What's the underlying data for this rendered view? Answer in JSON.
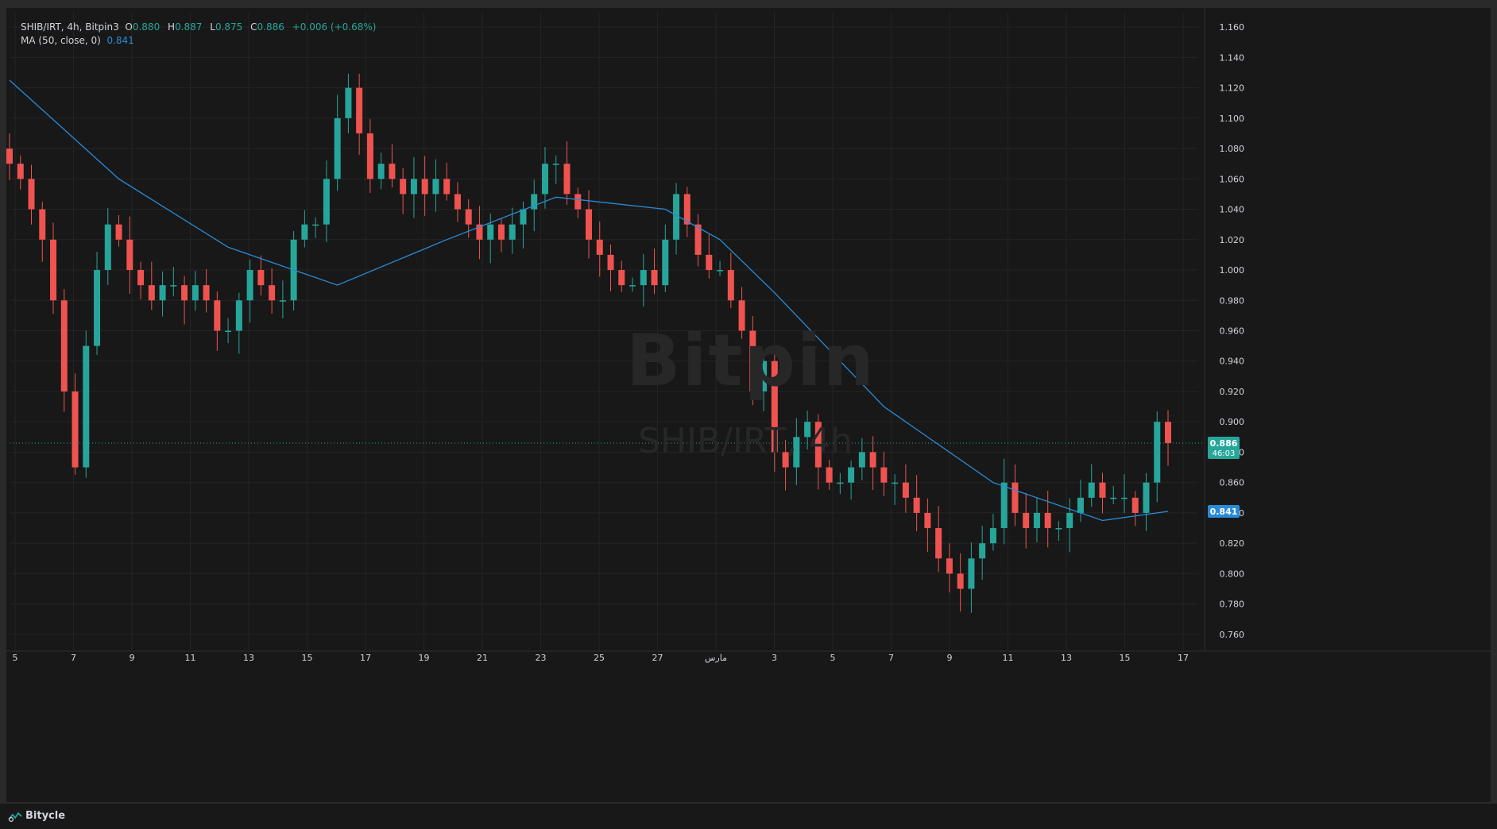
{
  "legend": {
    "symbol": "SHIB/IRT, 4h, Bitpin3",
    "o_label": "O",
    "o_value": "0.880",
    "h_label": "H",
    "h_value": "0.887",
    "l_label": "L",
    "l_value": "0.875",
    "c_label": "C",
    "c_value": "0.886",
    "change": "+0.006 (+0.68%)",
    "ma_label": "MA (50, close, 0)",
    "ma_value": "0.841"
  },
  "watermark": {
    "brand": "Bitpin",
    "symbol": "SHIB/IRT, 4h"
  },
  "price_badge": {
    "price": "0.886",
    "countdown": "46:03"
  },
  "ma_badge": {
    "value": "0.841"
  },
  "footer": {
    "brand": "Bitycle"
  },
  "colors": {
    "up": "#26a69a",
    "down": "#ef5350",
    "ma": "#2a8bd8",
    "grid": "#242424",
    "axis_text": "#d1d4dc",
    "price_line": "#26a69a"
  },
  "chart_data": {
    "type": "candlestick",
    "title": "SHIB/IRT, 4h",
    "ylim": [
      0.75,
      1.17
    ],
    "y_ticks": [
      "1.160",
      "1.140",
      "1.120",
      "1.100",
      "1.080",
      "1.060",
      "1.040",
      "1.020",
      "1.000",
      "0.980",
      "0.960",
      "0.940",
      "0.920",
      "0.900",
      "0.880",
      "0.860",
      "0.840",
      "0.820",
      "0.800",
      "0.780",
      "0.760"
    ],
    "x_ticks": [
      "5",
      "7",
      "9",
      "11",
      "13",
      "15",
      "17",
      "19",
      "21",
      "23",
      "25",
      "27",
      "مارس",
      "3",
      "5",
      "7",
      "9",
      "11",
      "13",
      "15",
      "17"
    ],
    "close_series": [
      1.07,
      1.06,
      1.04,
      1.02,
      0.98,
      0.92,
      0.87,
      0.95,
      1.0,
      1.03,
      1.02,
      1.0,
      0.99,
      0.98,
      0.99,
      0.99,
      0.98,
      0.99,
      0.98,
      0.96,
      0.96,
      0.98,
      1.0,
      0.99,
      0.98,
      0.98,
      1.02,
      1.03,
      1.03,
      1.06,
      1.1,
      1.12,
      1.09,
      1.06,
      1.07,
      1.06,
      1.05,
      1.06,
      1.05,
      1.06,
      1.05,
      1.04,
      1.03,
      1.02,
      1.03,
      1.02,
      1.03,
      1.04,
      1.05,
      1.07,
      1.07,
      1.05,
      1.04,
      1.02,
      1.01,
      1.0,
      0.99,
      0.99,
      1.0,
      0.99,
      1.02,
      1.05,
      1.03,
      1.01,
      1.0,
      1.0,
      0.98,
      0.96,
      0.92,
      0.94,
      0.88,
      0.87,
      0.89,
      0.9,
      0.87,
      0.86,
      0.86,
      0.87,
      0.88,
      0.87,
      0.86,
      0.86,
      0.85,
      0.84,
      0.83,
      0.81,
      0.8,
      0.79,
      0.81,
      0.82,
      0.83,
      0.86,
      0.84,
      0.83,
      0.84,
      0.83,
      0.83,
      0.84,
      0.85,
      0.86,
      0.85,
      0.85,
      0.85,
      0.84,
      0.86,
      0.9,
      0.886
    ],
    "ma50": {
      "name": "MA (50, close, 0)",
      "x_index": [
        0,
        10,
        20,
        30,
        40,
        50,
        60,
        65,
        70,
        80,
        90,
        100,
        106
      ],
      "values": [
        1.125,
        1.06,
        1.015,
        0.99,
        1.02,
        1.048,
        1.04,
        1.02,
        0.985,
        0.91,
        0.86,
        0.835,
        0.841
      ]
    },
    "last_price": 0.886,
    "last_ma": 0.841
  }
}
